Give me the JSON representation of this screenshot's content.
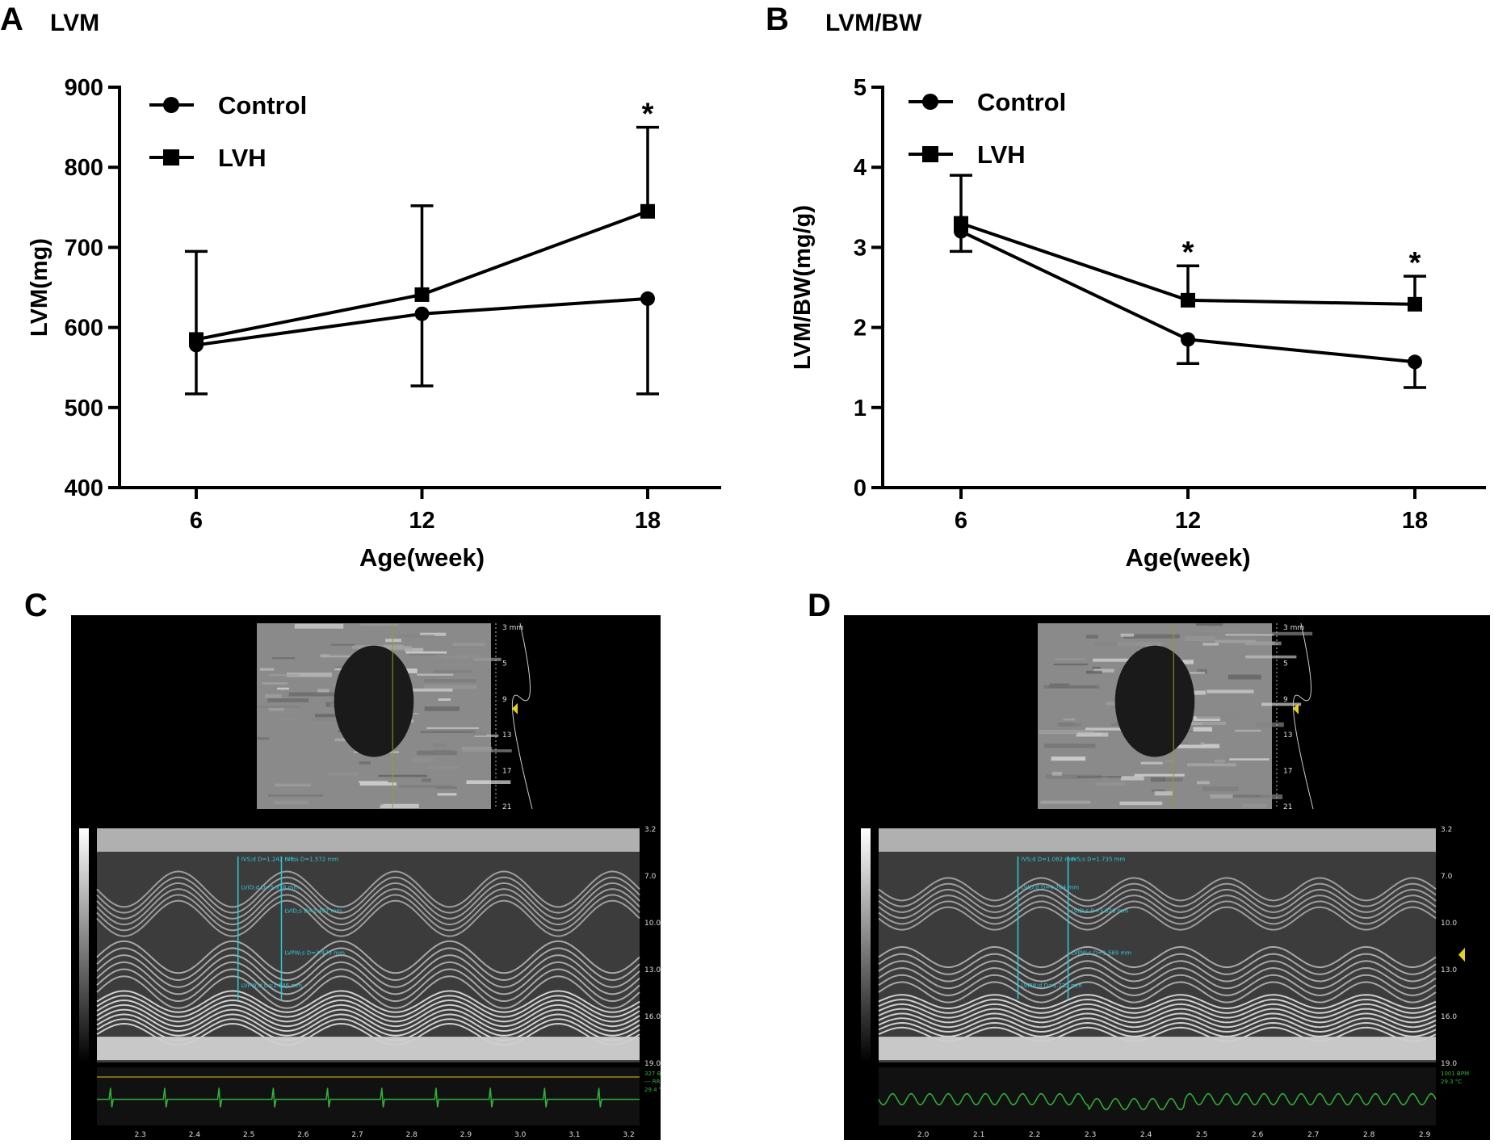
{
  "panels": {
    "a": {
      "letter": "A",
      "title": "LVM"
    },
    "b": {
      "letter": "B",
      "title": "LVM/BW"
    },
    "c": {
      "letter": "C"
    },
    "d": {
      "letter": "D"
    }
  },
  "chart_data": [
    {
      "type": "line",
      "title": "LVM",
      "xlabel": "Age(week)",
      "ylabel": "LVM(mg)",
      "categories": [
        "6",
        "12",
        "18"
      ],
      "x": [
        6,
        12,
        18
      ],
      "ylim": [
        400,
        900
      ],
      "yticks": [
        400,
        500,
        600,
        700,
        800,
        900
      ],
      "legend_position": "top-left",
      "series": [
        {
          "name": "Control",
          "marker": "circle",
          "values": [
            578,
            617,
            636
          ],
          "error_low": [
            517,
            527,
            517
          ]
        },
        {
          "name": "LVH",
          "marker": "square",
          "values": [
            585,
            641,
            745
          ],
          "error_high": [
            695,
            752,
            850
          ]
        }
      ],
      "annotations": [
        {
          "x": 18,
          "text": "*"
        }
      ]
    },
    {
      "type": "line",
      "title": "LVM/BW",
      "xlabel": "Age(week)",
      "ylabel": "LVM/BW(mg/g)",
      "categories": [
        "6",
        "12",
        "18"
      ],
      "x": [
        6,
        12,
        18
      ],
      "ylim": [
        0,
        5
      ],
      "yticks": [
        0,
        1,
        2,
        3,
        4,
        5
      ],
      "legend_position": "top-left",
      "series": [
        {
          "name": "Control",
          "marker": "circle",
          "values": [
            3.2,
            1.85,
            1.57
          ],
          "error_low": [
            2.95,
            1.55,
            1.25
          ]
        },
        {
          "name": "LVH",
          "marker": "square",
          "values": [
            3.3,
            2.34,
            2.29
          ],
          "error_high": [
            3.9,
            2.77,
            2.64
          ]
        }
      ],
      "annotations": [
        {
          "x": 12,
          "text": "*"
        },
        {
          "x": 18,
          "text": "*"
        }
      ]
    }
  ],
  "echo": {
    "c": {
      "depth_top": [
        "3 mm",
        "5",
        "9",
        "13",
        "17",
        "21"
      ],
      "depth_mmode": [
        "3.2",
        "7.0",
        "10.0",
        "13.0",
        "16.0",
        "19.0"
      ],
      "time_axis": [
        "2.3",
        "2.4",
        "2.5",
        "2.6",
        "2.7",
        "2.8",
        "2.9",
        "3.0",
        "3.1",
        "3.2"
      ],
      "measurements": [
        "IVS;d D=1.242 mm",
        "IVS;s D=1.572 mm",
        "LVID;d D=5.918 mm",
        "LVID;s D=2.487 mm",
        "LVPW;s D=3.475 mm",
        "LVPW;d D=1.646 mm"
      ],
      "status": [
        "327 BPM",
        "--- RR",
        "29.4 °C"
      ]
    },
    "d": {
      "depth_top": [
        "3 mm",
        "5",
        "9",
        "13",
        "17",
        "21"
      ],
      "depth_mmode": [
        "3.2",
        "7.0",
        "10.0",
        "13.0",
        "16.0",
        "19.0"
      ],
      "time_axis": [
        "2.0",
        "2.1",
        "2.2",
        "2.3",
        "2.4",
        "2.5",
        "2.6",
        "2.7",
        "2.8",
        "2.9"
      ],
      "measurements": [
        "IVS;d D=1.082 mm",
        "IVS;s D=1.735 mm",
        "LVID;d D=4.764 mm",
        "LVID;s D=3.626 mm",
        "LVPW;s D=1.569 mm",
        "LVPW;d D=1.732 mm"
      ],
      "status": [
        "1001 BPM",
        "29.3 °C"
      ]
    }
  }
}
